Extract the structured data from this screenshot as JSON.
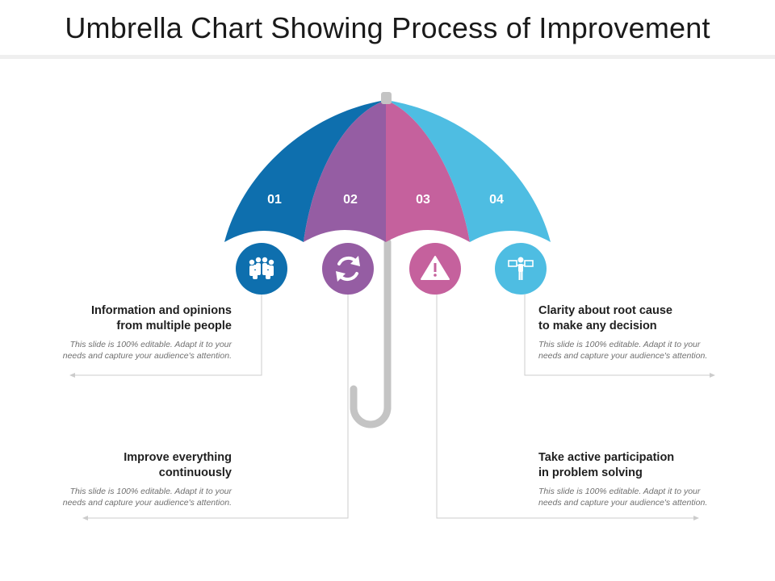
{
  "title": "Umbrella Chart Showing Process of Improvement",
  "segments": [
    {
      "number": "01",
      "color": "#0e6fae",
      "icon": "group-of-people-icon"
    },
    {
      "number": "02",
      "color": "#955da3",
      "icon": "refresh-cycle-icon"
    },
    {
      "number": "03",
      "color": "#c5619d",
      "icon": "warning-triangle-icon"
    },
    {
      "number": "04",
      "color": "#4ebde2",
      "icon": "person-with-boards-icon"
    }
  ],
  "handle_color": "#c4c4c4",
  "items": [
    {
      "heading": "Information and opinions\nfrom multiple people",
      "body": "This slide is 100% editable. Adapt it to your\nneeds and capture your audience's attention."
    },
    {
      "heading": "Improve everything\ncontinuously",
      "body": "This slide is 100% editable. Adapt it to your\nneeds and capture your audience's attention."
    },
    {
      "heading": "Take active participation\nin problem solving",
      "body": "This slide is 100% editable. Adapt it to your\nneeds and capture your audience's attention."
    },
    {
      "heading": "Clarity about root cause\nto make any decision",
      "body": "This slide is 100% editable. Adapt it to your\nneeds and capture your audience's attention."
    }
  ]
}
